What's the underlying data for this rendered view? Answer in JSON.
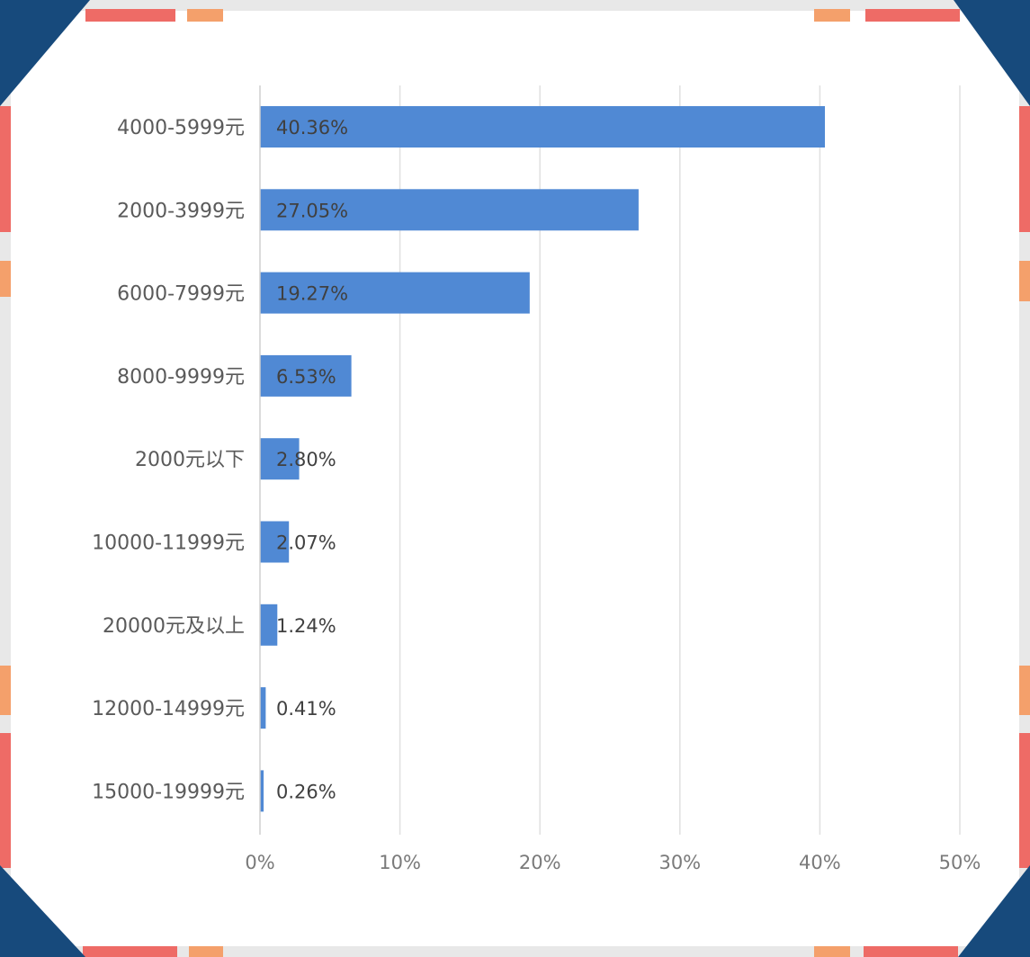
{
  "chart_data": {
    "type": "bar",
    "orientation": "horizontal",
    "categories": [
      "4000-5999元",
      "2000-3999元",
      "6000-7999元",
      "8000-9999元",
      "2000元以下",
      "10000-11999元",
      "20000元及以上",
      "12000-14999元",
      "15000-19999元"
    ],
    "values": [
      40.36,
      27.05,
      19.27,
      6.53,
      2.8,
      2.07,
      1.24,
      0.41,
      0.26
    ],
    "value_labels": [
      "40.36%",
      "27.05%",
      "19.27%",
      "6.53%",
      "2.80%",
      "2.07%",
      "1.24%",
      "0.41%",
      "0.26%"
    ],
    "x_ticks": [
      "0%",
      "10%",
      "20%",
      "30%",
      "40%",
      "50%"
    ],
    "xlim": [
      0,
      50
    ],
    "grid": "vertical",
    "colors": {
      "bar": "#5089d4",
      "grid": "#e0e0e0",
      "tick_text": "#7a7a7a",
      "category_text": "#5a5a5a",
      "value_text": "#404040",
      "frame_navy": "#174a7c",
      "frame_red": "#ee6b66",
      "frame_orange": "#f4a06b",
      "frame_grey": "#e8e8e8"
    }
  }
}
